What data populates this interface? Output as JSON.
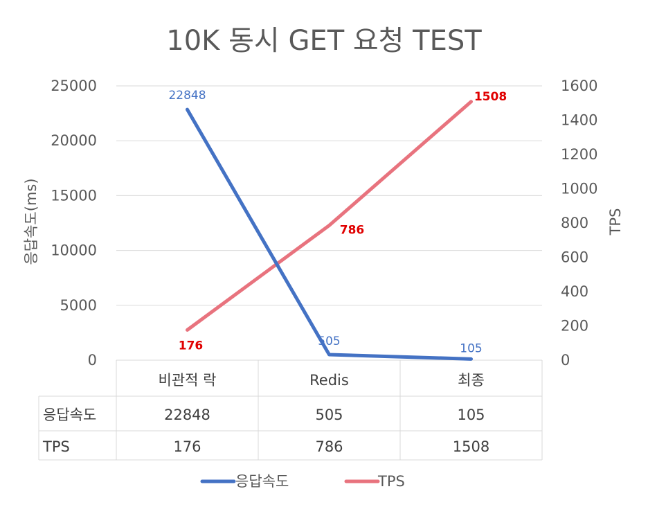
{
  "chart_data": {
    "type": "line",
    "title": "10K 동시 GET 요청 TEST",
    "categories": [
      "비관적 락",
      "Redis",
      "최종"
    ],
    "y_left": {
      "label": "응답속도(ms)",
      "range": [
        0,
        25000
      ],
      "ticks": [
        "0",
        "5000",
        "10000",
        "15000",
        "20000",
        "25000"
      ]
    },
    "y_right": {
      "label": "TPS",
      "range": [
        0,
        1600
      ],
      "ticks": [
        "0",
        "200",
        "400",
        "600",
        "800",
        "1000",
        "1200",
        "1400",
        "1600"
      ]
    },
    "grid": true,
    "legend_position": "bottom",
    "series": [
      {
        "name": "응답속도",
        "axis": "left",
        "color": "#4472c4",
        "values": [
          22848,
          505,
          105
        ],
        "labels": [
          "22848",
          "505",
          "105"
        ]
      },
      {
        "name": "TPS",
        "axis": "right",
        "color": "#e8737e",
        "label_color": "#e00000",
        "values": [
          176,
          786,
          1508
        ],
        "labels": [
          "176",
          "786",
          "1508"
        ]
      }
    ],
    "data_table": {
      "rows": [
        {
          "name": "응답속도",
          "cells": [
            "22848",
            "505",
            "105"
          ]
        },
        {
          "name": "TPS",
          "cells": [
            "176",
            "786",
            "1508"
          ]
        }
      ]
    }
  }
}
